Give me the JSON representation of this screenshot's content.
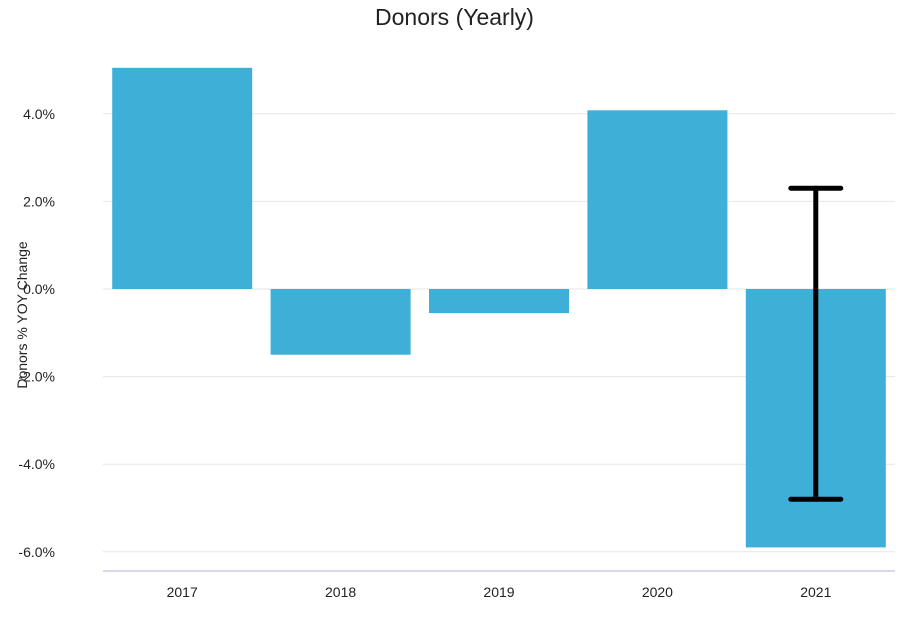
{
  "chart_data": {
    "type": "bar",
    "title": "Donors (Yearly)",
    "xlabel": "",
    "ylabel": "Donors % YOY Change",
    "categories": [
      "2017",
      "2018",
      "2019",
      "2020",
      "2021"
    ],
    "values": [
      5.05,
      -1.5,
      -0.55,
      4.08,
      -5.9
    ],
    "error_bar": {
      "category": "2021",
      "low": -4.8,
      "high": 2.3
    },
    "y_ticks": [
      -6.0,
      -4.0,
      -2.0,
      0.0,
      2.0,
      4.0
    ],
    "y_tick_labels": [
      "-6.0%",
      "-4.0%",
      "-2.0%",
      "0.0%",
      "2.0%",
      "4.0%"
    ],
    "ylim": [
      -6.5,
      5.3
    ],
    "grid": true,
    "legend": "none",
    "colors": {
      "bar": "#3eafd6",
      "error_bar": "#000000",
      "grid": "#e6e6e6",
      "axis": "#c8cedd",
      "text": "#222222"
    }
  }
}
